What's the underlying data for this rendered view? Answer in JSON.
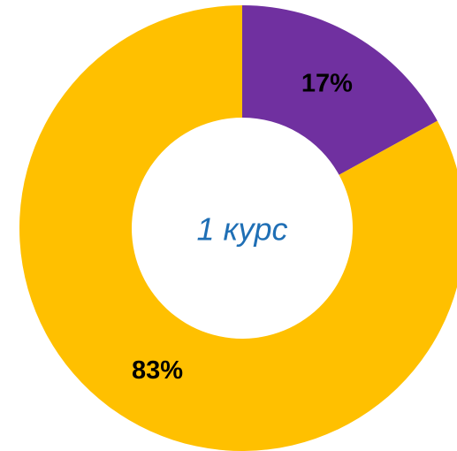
{
  "chart_data": {
    "type": "donut",
    "center_label": "1 курс",
    "values": [
      17,
      83
    ],
    "value_labels": [
      "17%",
      "83%"
    ],
    "colors": [
      "#7030a0",
      "#ffc000"
    ]
  }
}
